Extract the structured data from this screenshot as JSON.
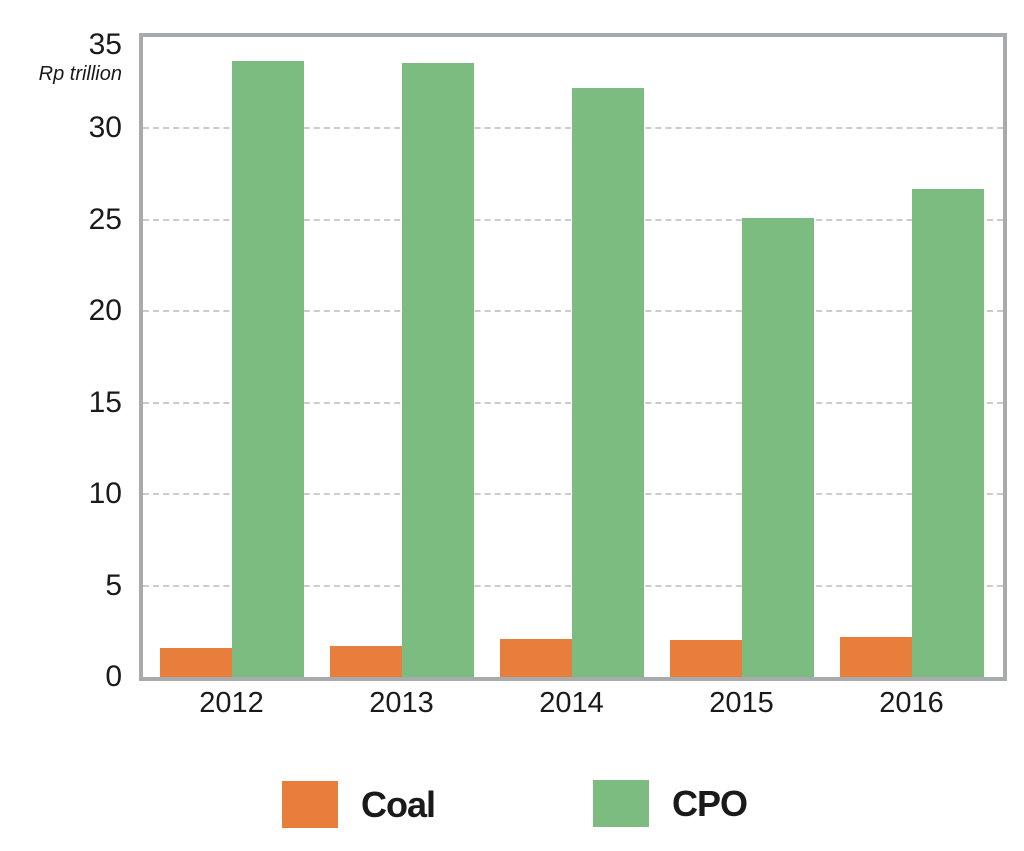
{
  "chart_data": {
    "type": "bar",
    "title": "",
    "ylabel": "Rp trillion",
    "xlabel": "",
    "categories": [
      "2012",
      "2013",
      "2014",
      "2015",
      "2016"
    ],
    "series": [
      {
        "name": "Coal",
        "color": "#E77E3B",
        "values": [
          1.6,
          1.7,
          2.1,
          2.0,
          2.2
        ]
      },
      {
        "name": "CPO",
        "color": "#7DBC81",
        "values": [
          33.7,
          33.6,
          32.2,
          25.1,
          26.7
        ]
      }
    ],
    "ylim": [
      0,
      35
    ],
    "yticks": [
      0,
      5,
      10,
      15,
      20,
      25,
      30,
      35
    ],
    "grid": "horizontal-dashed",
    "legend_position": "bottom",
    "colors": {
      "frame": "#A8ABAE",
      "gridline": "#CCCCCC",
      "text": "#1A1A1A",
      "background": "#FFFFFF"
    }
  }
}
